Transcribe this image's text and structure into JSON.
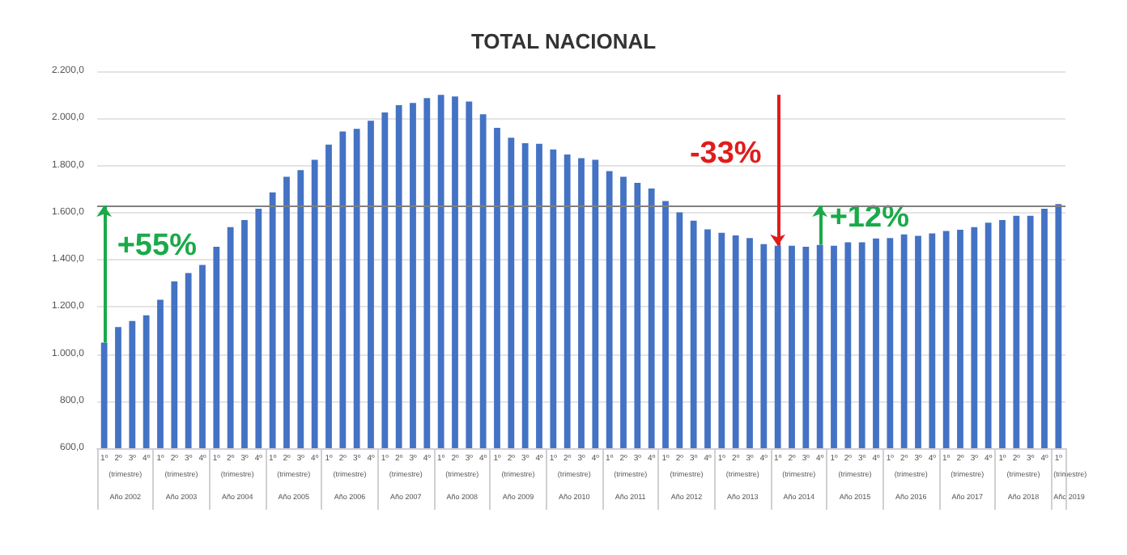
{
  "chart_data": {
    "type": "bar",
    "title": "TOTAL NACIONAL",
    "categories": [
      "1º",
      "2º",
      "3º",
      "4º",
      "1º",
      "2º",
      "3º",
      "4º",
      "1º",
      "2º",
      "3º",
      "4º",
      "1º",
      "2º",
      "3º",
      "4º",
      "1º",
      "2º",
      "3º",
      "4º",
      "1º",
      "2º",
      "3º",
      "4º",
      "1º",
      "2º",
      "3º",
      "4º",
      "1º",
      "2º",
      "3º",
      "4º",
      "1º",
      "2º",
      "3º",
      "4º",
      "1º",
      "2º",
      "3º",
      "4º",
      "1º",
      "2º",
      "3º",
      "4º",
      "1º",
      "2º",
      "3º",
      "4º",
      "1º",
      "2º",
      "3º",
      "4º",
      "1º",
      "2º",
      "3º",
      "4º",
      "1º",
      "2º",
      "3º",
      "4º",
      "1º",
      "2º",
      "3º",
      "4º",
      "1º",
      "2º",
      "3º",
      "4º",
      "1º"
    ],
    "series": [
      {
        "color": "#4472c4",
        "values": [
          1048,
          1114,
          1140,
          1164,
          1230,
          1308,
          1343,
          1378,
          1455,
          1538,
          1568,
          1616,
          1686,
          1752,
          1780,
          1824,
          1888,
          1944,
          1955,
          1990,
          2025,
          2056,
          2065,
          2086,
          2100,
          2093,
          2071,
          2017,
          1960,
          1918,
          1894,
          1892,
          1868,
          1846,
          1831,
          1824,
          1776,
          1752,
          1726,
          1702,
          1649,
          1601,
          1566,
          1529,
          1514,
          1503,
          1492,
          1466,
          1459,
          1459,
          1455,
          1463,
          1459,
          1474,
          1474,
          1490,
          1492,
          1507,
          1501,
          1512,
          1522,
          1527,
          1538,
          1557,
          1568,
          1586,
          1586,
          1616,
          1636
        ]
      }
    ],
    "ylim": [
      600,
      2200
    ],
    "yticks": [
      {
        "value": 600,
        "label": "600,0"
      },
      {
        "value": 800,
        "label": "800,0"
      },
      {
        "value": 1000,
        "label": "1.000,0"
      },
      {
        "value": 1200,
        "label": "1.200,0"
      },
      {
        "value": 1400,
        "label": "1.400,0"
      },
      {
        "value": 1600,
        "label": "1.600,0"
      },
      {
        "value": 1800,
        "label": "1.800,0"
      },
      {
        "value": 2000,
        "label": "2.000,0"
      },
      {
        "value": 2200,
        "label": "2.200,0"
      }
    ],
    "grid": "y",
    "ref_lines": [
      {
        "axis": "y",
        "value": 1630,
        "color": "#808080"
      }
    ],
    "annotations": [
      "+55%",
      "-33%",
      "+12%",
      "(trimestre)",
      "Año 2002",
      "(trimestre)",
      "Año 2003",
      "(trimestre)",
      "Año 2004",
      "(trimestre)",
      "Año 2005",
      "(trimestre)",
      "Año 2006",
      "(trimestre)",
      "Año 2007",
      "(trimestre)",
      "Año 2008",
      "(trimestre)",
      "Año 2009",
      "(trimestre)",
      "Año 2010",
      "(trimestre)",
      "Año 2011",
      "(trimestre)",
      "Año 2012",
      "(trimestre)",
      "Año 2013",
      "(trimestre)",
      "Año 2014",
      "(trimestre)",
      "Año 2015",
      "(trimestre)",
      "Año 2016",
      "(trimestre)",
      "Año 2017",
      "(trimestre)",
      "Año 2018",
      "(trimestre)",
      "Año 2019"
    ]
  }
}
